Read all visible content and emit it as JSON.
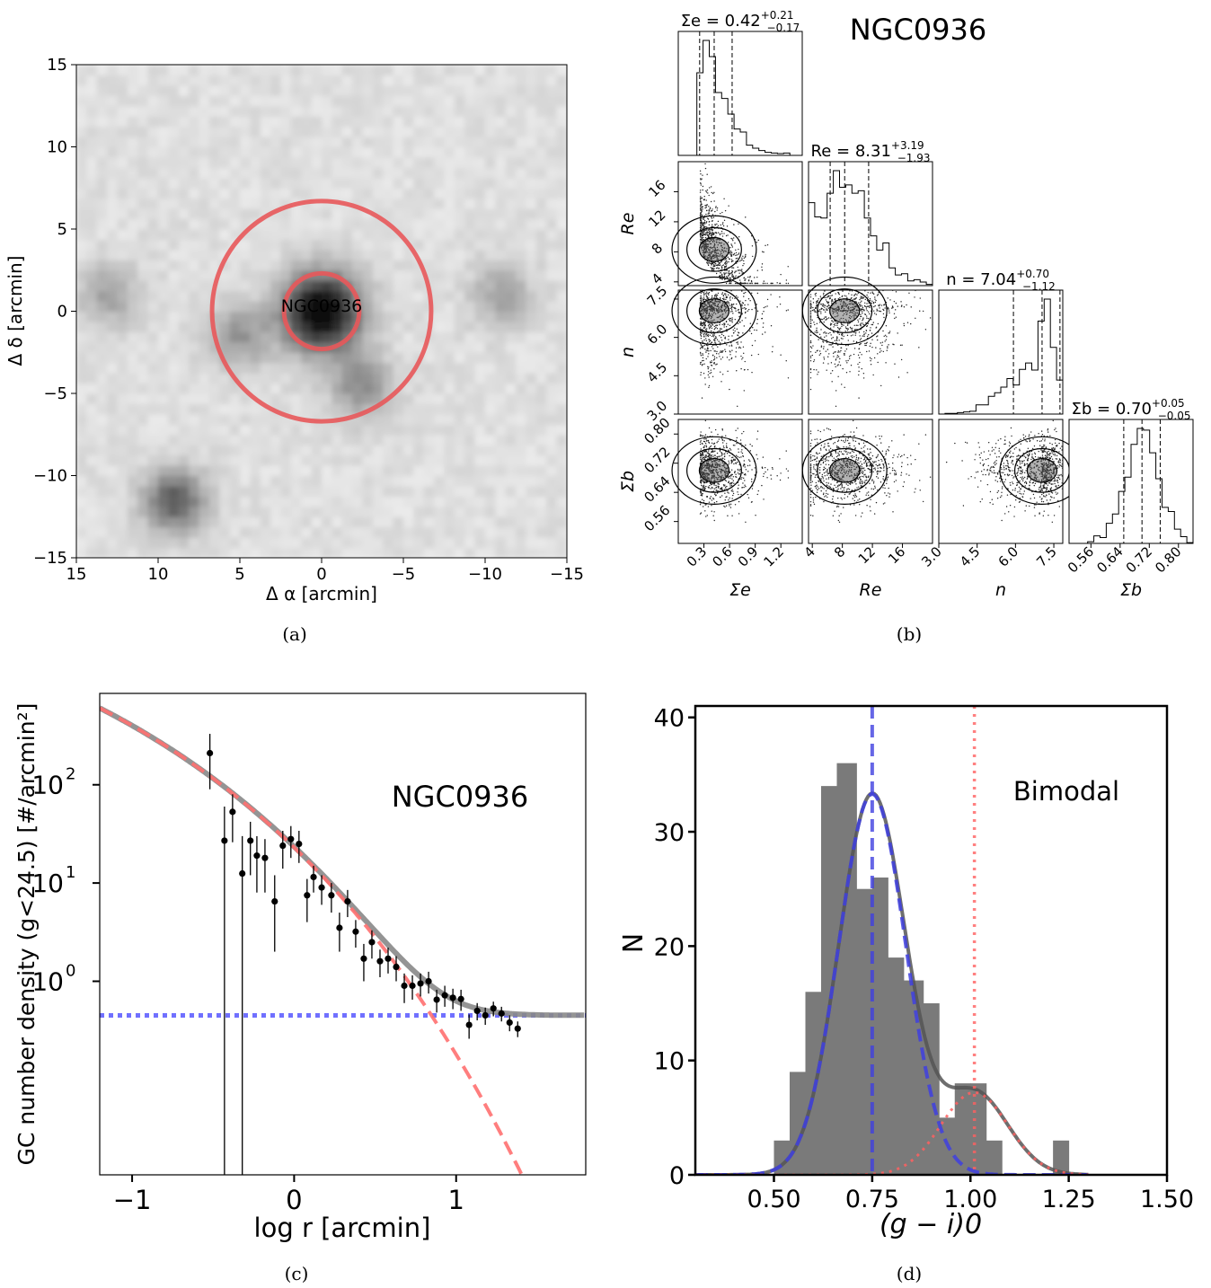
{
  "chart_data": [
    {
      "panel": "a",
      "type": "heatmap",
      "caption": "(a)",
      "xlabel": "Δ α [arcmin]",
      "ylabel": "Δ δ [arcmin]",
      "xlim": [
        15,
        -15
      ],
      "ylim": [
        -15,
        15
      ],
      "xticks": [
        "15",
        "10",
        "5",
        "0",
        "−5",
        "−10",
        "−15"
      ],
      "yticks": [
        "15",
        "10",
        "5",
        "0",
        "−5",
        "−10",
        "−15"
      ],
      "overlay_label": "NGC0936",
      "circles_radius_arcmin": [
        2.3,
        6.7
      ],
      "circle_color": "#e8585a",
      "density_peaks": [
        {
          "x": 0,
          "y": 0,
          "w": 1.0
        },
        {
          "x": 9,
          "y": -11.5,
          "w": 0.55
        },
        {
          "x": -2.5,
          "y": -4.5,
          "w": 0.35
        },
        {
          "x": 13,
          "y": 1,
          "w": 0.25
        },
        {
          "x": -11,
          "y": 1,
          "w": 0.25
        },
        {
          "x": 5,
          "y": -1.5,
          "w": 0.3
        }
      ]
    },
    {
      "panel": "b",
      "type": "scatter",
      "caption": "(b)",
      "title": "NGC0936",
      "parameters": [
        {
          "symbol": "Σe",
          "axis_label": "Σe",
          "value": "0.42",
          "plus": "+0.21",
          "minus": "−0.17",
          "median": 0.42,
          "lo": 0.25,
          "hi": 0.63,
          "range": [
            0.0,
            1.45
          ],
          "ticks": [
            "0.3",
            "0.6",
            "0.9",
            "1.2"
          ]
        },
        {
          "symbol": "Re",
          "axis_label": "Re",
          "value": "8.31",
          "plus": "+3.19",
          "minus": "−1.93",
          "median": 8.31,
          "lo": 6.38,
          "hi": 11.5,
          "range": [
            3.5,
            20.0
          ],
          "ticks": [
            "4",
            "8",
            "12",
            "16"
          ]
        },
        {
          "symbol": "n",
          "axis_label": "n",
          "value": "7.04",
          "plus": "+0.70",
          "minus": "−1.12",
          "median": 7.04,
          "lo": 5.92,
          "hi": 7.74,
          "range": [
            3.0,
            7.85
          ],
          "ticks": [
            "3.0",
            "4.5",
            "6.0",
            "7.5"
          ]
        },
        {
          "symbol": "Σb",
          "axis_label": "Σb",
          "value": "0.70",
          "plus": "+0.05",
          "minus": "−0.05",
          "median": 0.7,
          "lo": 0.65,
          "hi": 0.75,
          "range": [
            0.5,
            0.84
          ],
          "ticks": [
            "0.56",
            "0.64",
            "0.72",
            "0.80"
          ]
        }
      ]
    },
    {
      "panel": "c",
      "type": "scatter",
      "caption": "(c)",
      "annotation": "NGC0936",
      "xlabel": "log r [arcmin]",
      "ylabel": "GC number density (g<24.5) [#/arcmin²]",
      "xlim": [
        -1.2,
        1.8
      ],
      "ylog": true,
      "ylim_log10": [
        -1.97,
        2.93
      ],
      "xticks": [
        "−1",
        "0",
        "1"
      ],
      "yticks": [
        "10",
        "10",
        "10"
      ],
      "ytick_exponents": [
        "2",
        "1",
        "0"
      ],
      "background_level": 0.45,
      "colors": {
        "total": "#888888",
        "sersic": "#ff7070",
        "sersic_core": "#8b3030",
        "background": "#7070ff"
      },
      "points": [
        {
          "x": -0.52,
          "y": 210,
          "lo": 90,
          "hi": 330
        },
        {
          "x": -0.43,
          "y": 27,
          "lo": 0.0,
          "hi": 60
        },
        {
          "x": -0.38,
          "y": 53,
          "lo": 26,
          "hi": 80
        },
        {
          "x": -0.32,
          "y": 12.5,
          "lo": 0.0,
          "hi": 30
        },
        {
          "x": -0.27,
          "y": 27,
          "lo": 12,
          "hi": 42
        },
        {
          "x": -0.23,
          "y": 19,
          "lo": 8,
          "hi": 30
        },
        {
          "x": -0.18,
          "y": 18,
          "lo": 8,
          "hi": 28
        },
        {
          "x": -0.12,
          "y": 6.5,
          "lo": 2,
          "hi": 12
        },
        {
          "x": -0.07,
          "y": 24,
          "lo": 14,
          "hi": 34
        },
        {
          "x": -0.02,
          "y": 28,
          "lo": 18,
          "hi": 38
        },
        {
          "x": 0.03,
          "y": 25,
          "lo": 16,
          "hi": 34
        },
        {
          "x": 0.08,
          "y": 7.5,
          "lo": 4,
          "hi": 11
        },
        {
          "x": 0.12,
          "y": 11.5,
          "lo": 8,
          "hi": 15
        },
        {
          "x": 0.17,
          "y": 9,
          "lo": 6,
          "hi": 12
        },
        {
          "x": 0.23,
          "y": 7.5,
          "lo": 5,
          "hi": 10
        },
        {
          "x": 0.28,
          "y": 3.5,
          "lo": 2,
          "hi": 5
        },
        {
          "x": 0.33,
          "y": 6.5,
          "lo": 4.5,
          "hi": 8.5
        },
        {
          "x": 0.38,
          "y": 3.2,
          "lo": 2.2,
          "hi": 4.2
        },
        {
          "x": 0.43,
          "y": 1.7,
          "lo": 1.0,
          "hi": 2.4
        },
        {
          "x": 0.48,
          "y": 2.5,
          "lo": 1.7,
          "hi": 3.3
        },
        {
          "x": 0.53,
          "y": 1.6,
          "lo": 1.1,
          "hi": 2.1
        },
        {
          "x": 0.58,
          "y": 1.7,
          "lo": 1.2,
          "hi": 2.2
        },
        {
          "x": 0.63,
          "y": 1.4,
          "lo": 1.0,
          "hi": 1.8
        },
        {
          "x": 0.68,
          "y": 0.9,
          "lo": 0.6,
          "hi": 1.2
        },
        {
          "x": 0.73,
          "y": 0.9,
          "lo": 0.65,
          "hi": 1.15
        },
        {
          "x": 0.78,
          "y": 0.95,
          "lo": 0.7,
          "hi": 1.2
        },
        {
          "x": 0.83,
          "y": 1.0,
          "lo": 0.75,
          "hi": 1.25
        },
        {
          "x": 0.88,
          "y": 0.65,
          "lo": 0.48,
          "hi": 0.82
        },
        {
          "x": 0.93,
          "y": 0.72,
          "lo": 0.55,
          "hi": 0.9
        },
        {
          "x": 0.98,
          "y": 0.68,
          "lo": 0.52,
          "hi": 0.84
        },
        {
          "x": 1.03,
          "y": 0.66,
          "lo": 0.5,
          "hi": 0.82
        },
        {
          "x": 1.08,
          "y": 0.36,
          "lo": 0.26,
          "hi": 0.46
        },
        {
          "x": 1.13,
          "y": 0.5,
          "lo": 0.4,
          "hi": 0.6
        },
        {
          "x": 1.18,
          "y": 0.45,
          "lo": 0.36,
          "hi": 0.54
        },
        {
          "x": 1.23,
          "y": 0.53,
          "lo": 0.44,
          "hi": 0.62
        },
        {
          "x": 1.28,
          "y": 0.47,
          "lo": 0.39,
          "hi": 0.55
        },
        {
          "x": 1.33,
          "y": 0.38,
          "lo": 0.31,
          "hi": 0.45
        },
        {
          "x": 1.38,
          "y": 0.33,
          "lo": 0.27,
          "hi": 0.39
        }
      ]
    },
    {
      "panel": "d",
      "type": "bar",
      "caption": "(d)",
      "annotation": "Bimodal",
      "xlabel": "(g − i)0",
      "ylabel": "N",
      "xlim": [
        0.3,
        1.5
      ],
      "ylim": [
        0,
        41
      ],
      "xticks": [
        "0.50",
        "0.75",
        "1.00",
        "1.25",
        "1.50"
      ],
      "yticks": [
        "0",
        "10",
        "20",
        "30",
        "40"
      ],
      "bins": [
        0.5,
        0.54,
        0.58,
        0.62,
        0.66,
        0.71,
        0.75,
        0.79,
        0.83,
        0.88,
        0.92,
        0.96,
        1.0,
        1.04,
        1.08,
        1.12,
        1.16,
        1.21,
        1.25
      ],
      "counts": [
        3,
        9,
        16,
        34,
        36,
        25,
        26,
        19,
        17,
        15,
        5,
        8,
        8,
        3,
        0,
        0,
        0,
        3
      ],
      "components": [
        {
          "name": "blue",
          "mu": 0.75,
          "sigma": 0.085,
          "amp": 33.3,
          "color": "#4040e0"
        },
        {
          "name": "red",
          "mu": 1.01,
          "sigma": 0.085,
          "amp": 7.2,
          "color": "#ff6060"
        }
      ],
      "colors": {
        "bars": "#7a7a7a",
        "total": "#555555"
      }
    }
  ]
}
